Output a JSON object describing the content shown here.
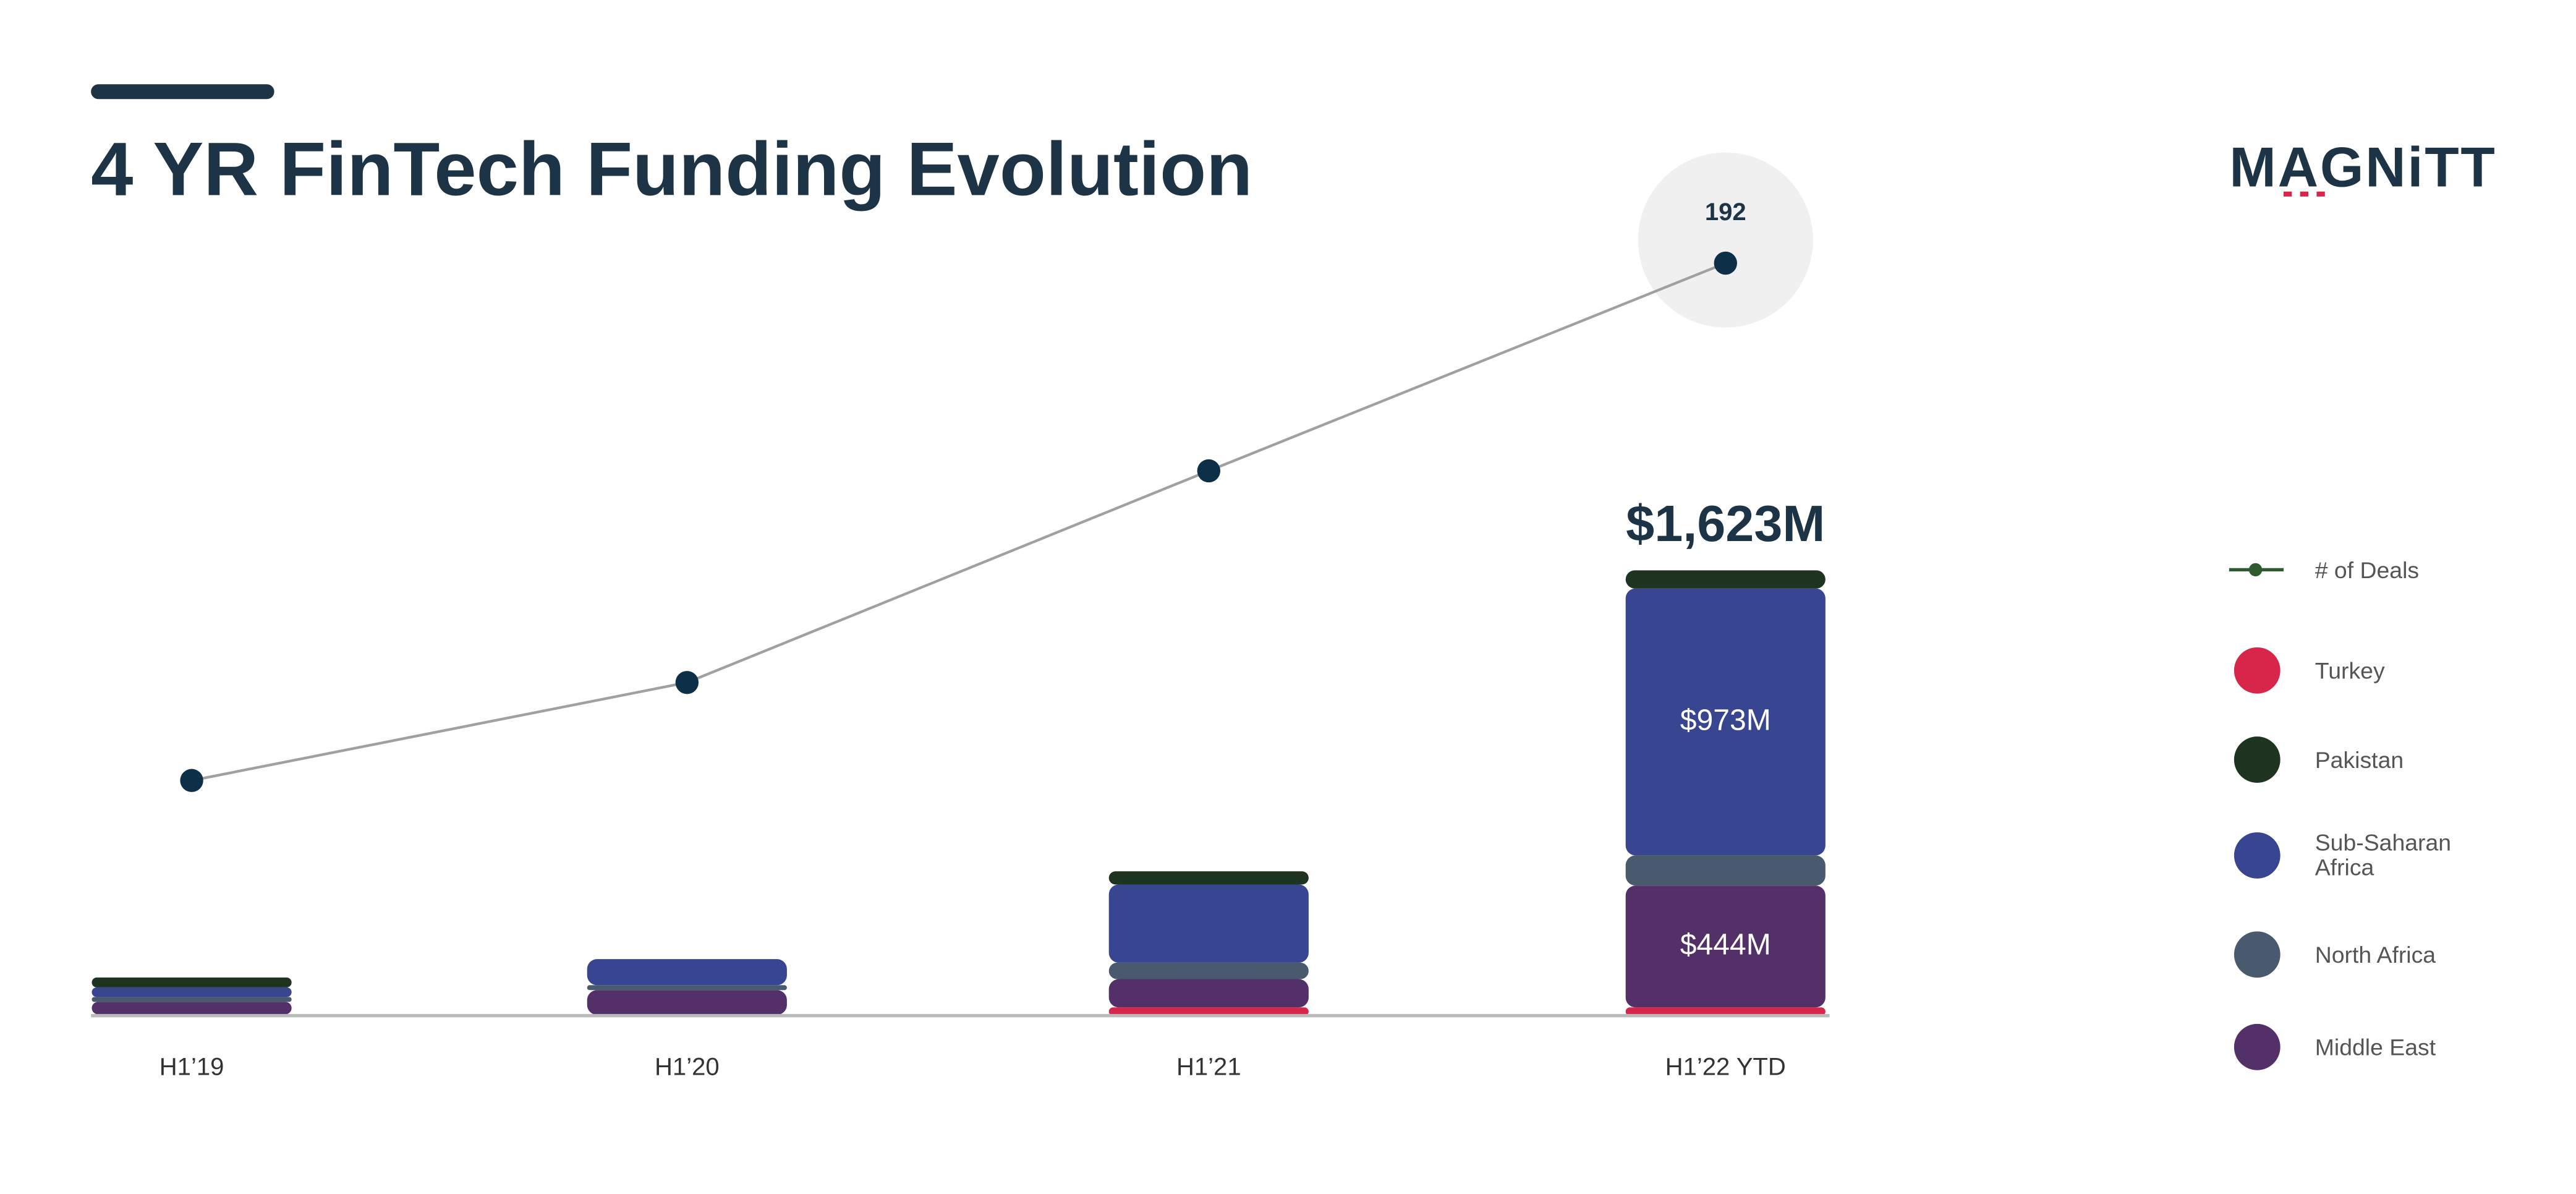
{
  "chart_data": {
    "type": "bar",
    "title": "4 YR FinTech Funding Evolution",
    "logo": "MAGNiTT",
    "categories": [
      "H1’19",
      "H1’20",
      "H1’21",
      "H1’22 YTD"
    ],
    "series": [
      {
        "name": "Turkey",
        "color": "#d7264a",
        "values": [
          5,
          3,
          30,
          30
        ]
      },
      {
        "name": "Middle East",
        "color": "#533067",
        "values": [
          45,
          90,
          103,
          444
        ],
        "value_labels": [
          null,
          null,
          null,
          "$444M"
        ]
      },
      {
        "name": "North Africa",
        "color": "#4a5a6e",
        "values": [
          18,
          18,
          60,
          110
        ]
      },
      {
        "name": "Sub-Saharan Africa",
        "color": "#384591",
        "values": [
          35,
          95,
          285,
          973
        ],
        "value_labels": [
          null,
          null,
          null,
          "$973M"
        ]
      },
      {
        "name": "Pakistan",
        "color": "#1f3321",
        "values": [
          36,
          0,
          48,
          66
        ]
      },
      {
        "name": "# of Deals",
        "type": "line",
        "axis": "y2",
        "color": "#0d2f48",
        "values": [
          60,
          85,
          139,
          192
        ]
      }
    ],
    "total_label": {
      "value": 1623,
      "label": "$1,623M"
    },
    "ylim": [
      0,
      3100
    ],
    "y2lim": [
      0,
      217
    ]
  }
}
